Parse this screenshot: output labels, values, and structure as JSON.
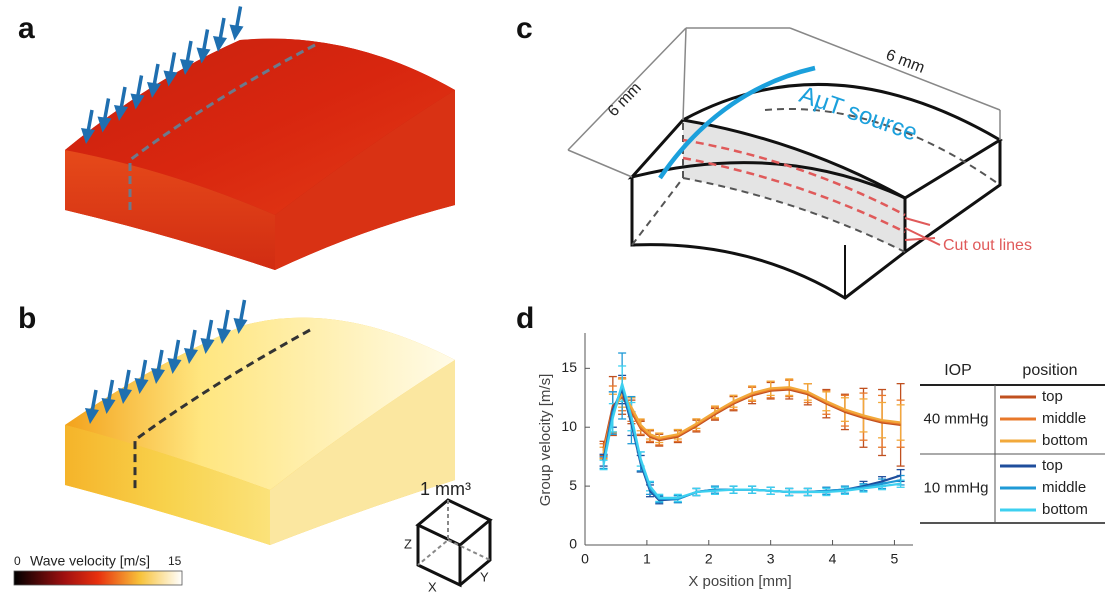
{
  "panel_labels": [
    "a",
    "b",
    "c",
    "d"
  ],
  "colorbar": {
    "label": "Wave velocity [m/s]",
    "lim": [
      0,
      15
    ],
    "ticks": [
      0,
      15
    ]
  },
  "cube": {
    "label": "1 mm³",
    "axes": [
      "Z",
      "X",
      "Y"
    ]
  },
  "diagram": {
    "dimensions": [
      "6 mm",
      "6 mm"
    ],
    "source": "AμT source",
    "cut": "Cut out lines"
  },
  "chart_data": {
    "type": "line",
    "x_label": "X position [mm]",
    "y_label": "Group velocity [m/s]",
    "xlim": [
      0,
      5.3
    ],
    "ylim": [
      0,
      18
    ],
    "xticks": [
      0,
      1,
      2,
      3,
      4,
      5
    ],
    "yticks": [
      0,
      5,
      10,
      15
    ],
    "legend": {
      "headers": [
        "IOP",
        "position"
      ],
      "groups": [
        "40 mmHg",
        "10 mmHg"
      ]
    },
    "x": [
      0.3,
      0.45,
      0.6,
      0.75,
      0.9,
      1.05,
      1.2,
      1.5,
      1.8,
      2.1,
      2.4,
      2.7,
      3.0,
      3.3,
      3.6,
      3.9,
      4.2,
      4.5,
      4.8,
      5.1
    ],
    "series": [
      {
        "name": "top",
        "color": "#c0501f",
        "values": [
          8.2,
          11.8,
          12.6,
          11.3,
          9.9,
          9.2,
          8.9,
          9.2,
          10.1,
          11.1,
          12.0,
          12.7,
          13.1,
          13.2,
          12.8,
          12.0,
          11.3,
          10.8,
          10.4,
          10.2
        ],
        "errors": [
          0.6,
          2.5,
          1.5,
          1.0,
          0.6,
          0.5,
          0.5,
          0.5,
          0.5,
          0.5,
          0.6,
          0.7,
          0.7,
          0.8,
          0.9,
          1.2,
          1.5,
          2.5,
          2.8,
          3.5
        ]
      },
      {
        "name": "middle",
        "color": "#e8782a",
        "values": [
          8.0,
          11.5,
          12.8,
          11.5,
          10.0,
          9.3,
          9.0,
          9.3,
          10.2,
          11.2,
          12.1,
          12.8,
          13.2,
          13.3,
          12.9,
          12.1,
          11.4,
          10.9,
          10.5,
          10.3
        ],
        "errors": [
          0.6,
          2.0,
          1.4,
          1.0,
          0.6,
          0.5,
          0.5,
          0.5,
          0.5,
          0.5,
          0.6,
          0.6,
          0.7,
          0.7,
          0.8,
          1.0,
          1.3,
          2.0,
          2.2,
          2.0
        ]
      },
      {
        "name": "bottom",
        "color": "#f2a93b",
        "values": [
          7.8,
          11.2,
          12.9,
          11.7,
          10.2,
          9.4,
          9.1,
          9.4,
          10.3,
          11.3,
          12.2,
          12.9,
          13.3,
          13.4,
          13.0,
          12.2,
          11.5,
          11.0,
          10.6,
          10.4
        ],
        "errors": [
          0.5,
          1.6,
          1.2,
          0.8,
          0.5,
          0.4,
          0.4,
          0.4,
          0.4,
          0.5,
          0.5,
          0.6,
          0.6,
          0.7,
          0.7,
          0.8,
          1.0,
          1.4,
          1.5,
          1.5
        ]
      },
      {
        "name": "top",
        "color": "#1f4e9c",
        "values": [
          7.2,
          11.5,
          13.2,
          10.3,
          6.9,
          4.6,
          3.8,
          3.9,
          4.5,
          4.7,
          4.7,
          4.7,
          4.6,
          4.5,
          4.5,
          4.6,
          4.7,
          5.0,
          5.4,
          5.9
        ],
        "errors": [
          0.5,
          1.5,
          1.2,
          1.0,
          0.7,
          0.5,
          0.3,
          0.3,
          0.3,
          0.3,
          0.3,
          0.3,
          0.3,
          0.3,
          0.3,
          0.3,
          0.3,
          0.4,
          0.4,
          0.5
        ]
      },
      {
        "name": "middle",
        "color": "#1f9ad6",
        "values": [
          7.0,
          11.2,
          13.5,
          10.6,
          7.1,
          4.8,
          3.9,
          3.9,
          4.5,
          4.7,
          4.7,
          4.7,
          4.6,
          4.5,
          4.5,
          4.6,
          4.7,
          4.9,
          5.2,
          5.5
        ],
        "errors": [
          0.5,
          1.8,
          2.8,
          2.0,
          0.8,
          0.5,
          0.3,
          0.3,
          0.3,
          0.3,
          0.3,
          0.3,
          0.3,
          0.3,
          0.3,
          0.3,
          0.3,
          0.3,
          0.4,
          0.4
        ]
      },
      {
        "name": "bottom",
        "color": "#3dd0f0",
        "values": [
          6.8,
          10.8,
          13.7,
          10.9,
          7.3,
          5.0,
          4.0,
          4.0,
          4.5,
          4.6,
          4.7,
          4.7,
          4.6,
          4.5,
          4.5,
          4.5,
          4.6,
          4.8,
          5.0,
          5.2
        ],
        "errors": [
          0.4,
          1.2,
          1.5,
          1.2,
          0.6,
          0.4,
          0.3,
          0.3,
          0.3,
          0.3,
          0.3,
          0.3,
          0.3,
          0.3,
          0.3,
          0.3,
          0.3,
          0.3,
          0.3,
          0.3
        ]
      }
    ]
  }
}
